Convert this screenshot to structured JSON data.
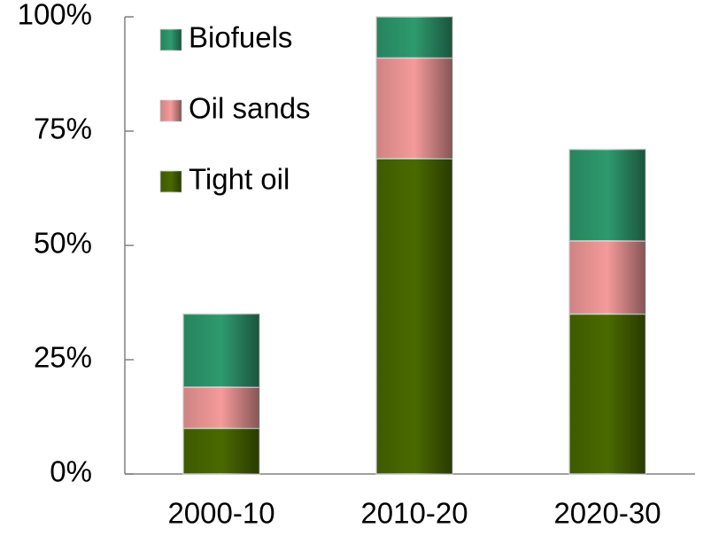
{
  "chart_data": {
    "type": "stacked_bar",
    "categories": [
      "2000-10",
      "2010-20",
      "2020-30"
    ],
    "series": [
      {
        "name": "Tight oil",
        "color": "#4a6a00",
        "values": [
          10,
          69,
          35
        ]
      },
      {
        "name": "Oil sands",
        "color": "#f49a9a",
        "values": [
          9,
          22,
          16
        ]
      },
      {
        "name": "Biofuels",
        "color": "#2e9a6e",
        "values": [
          16,
          9,
          20
        ]
      }
    ],
    "ylim": [
      0,
      100
    ],
    "yticks": [
      {
        "value": 0,
        "label": "0%"
      },
      {
        "value": 25,
        "label": "25%"
      },
      {
        "value": 50,
        "label": "50%"
      },
      {
        "value": 75,
        "label": "75%"
      },
      {
        "value": 100,
        "label": "100%"
      }
    ],
    "legend": "top-left",
    "grid": false
  }
}
